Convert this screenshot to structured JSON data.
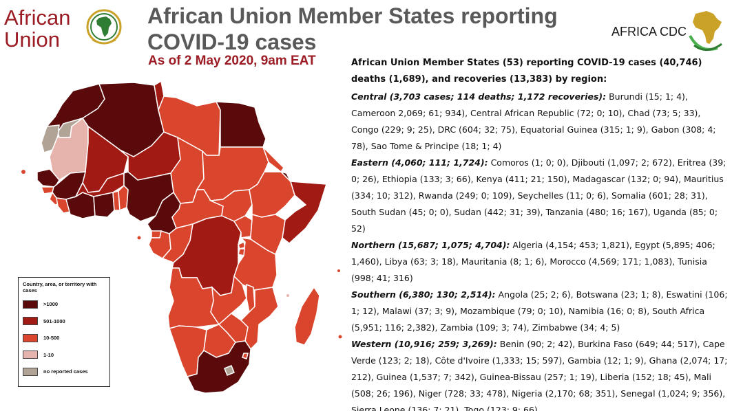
{
  "header": {
    "au_logo_text": [
      "African",
      "Union"
    ],
    "title": "African Union Member States reporting COVID-19 cases",
    "subtitle": "As of 2 May 2020, 9am EAT",
    "cdc_logo_text": "AFRICA CDC"
  },
  "legend": {
    "title": "Country, area, or territory with cases",
    "items": [
      {
        "label": ">1000",
        "color": "#5a0a0a"
      },
      {
        "label": "501-1000",
        "color": "#a11a14"
      },
      {
        "label": "10-500",
        "color": "#d9452d"
      },
      {
        "label": "1-10",
        "color": "#e6b3ad"
      },
      {
        "label": "no reported cases",
        "color": "#b1a395"
      }
    ]
  },
  "summary": {
    "heading": "African Union Member States (53) reporting COVID-19 cases (40,746) deaths (1,689), and recoveries (13,383) by region:",
    "regions": [
      {
        "label": "Central (3,703 cases; 114 deaths; 1,172 recoveries):",
        "text": "Burundi (15; 1; 4), Cameroon 2,069; 61; 934), Central African Republic (72; 0; 10), Chad (73; 5; 33), Congo (229; 9; 25), DRC (604; 32; 75), Equatorial Guinea (315; 1; 9), Gabon (308; 4; 78), Sao Tome & Principe (18; 1; 4)"
      },
      {
        "label": "Eastern (4,060; 111; 1,724):",
        "text": "Comoros (1; 0; 0), Djibouti (1,097; 2; 672), Eritrea (39; 0; 26), Ethiopia (133; 3; 66), Kenya (411; 21; 150), Madagascar (132; 0; 94), Mauritius (334; 10; 312), Rwanda (249; 0; 109), Seychelles (11; 0; 6), Somalia (601; 28; 31), South Sudan (45; 0; 0), Sudan (442; 31; 39), Tanzania (480; 16; 167), Uganda (85; 0; 52)"
      },
      {
        "label": "Northern (15,687; 1,075; 4,704):",
        "text": "Algeria (4,154; 453; 1,821), Egypt (5,895; 406; 1,460), Libya (63; 3; 18), Mauritania (8; 1; 6), Morocco (4,569; 171; 1,083), Tunisia (998; 41; 316)"
      },
      {
        "label": "Southern (6,380; 130; 2,514):",
        "text": "Angola (25; 2; 6), Botswana (23; 1; 8), Eswatini (106; 1; 12), Malawi (37; 3; 9), Mozambique (79; 0; 10),  Namibia (16; 0; 8), South Africa (5,951; 116; 2,382), Zambia (109; 3; 74), Zimbabwe (34; 4; 5)"
      },
      {
        "label": "Western (10,916; 259; 3,269):",
        "text": "Benin (90; 2; 42), Burkina Faso (649; 44; 517), Cape Verde (123; 2; 18), Côte d'Ivoire (1,333; 15; 597), Gambia (12; 1; 9), Ghana (2,074; 17; 212), Guinea (1,537; 7; 342), Guinea-Bissau (257; 1; 19), Liberia (152; 18; 45), Mali (508; 26; 196), Niger (728; 33; 478), Nigeria (2,170; 68; 351), Senegal (1,024; 9; 356), Sierra Leone (136; 7; 21), Togo (123; 9; 66)"
      }
    ]
  },
  "colors": {
    "brand_red": "#9b1c24",
    "title_gray": "#595959",
    "border": "#ffffff"
  }
}
